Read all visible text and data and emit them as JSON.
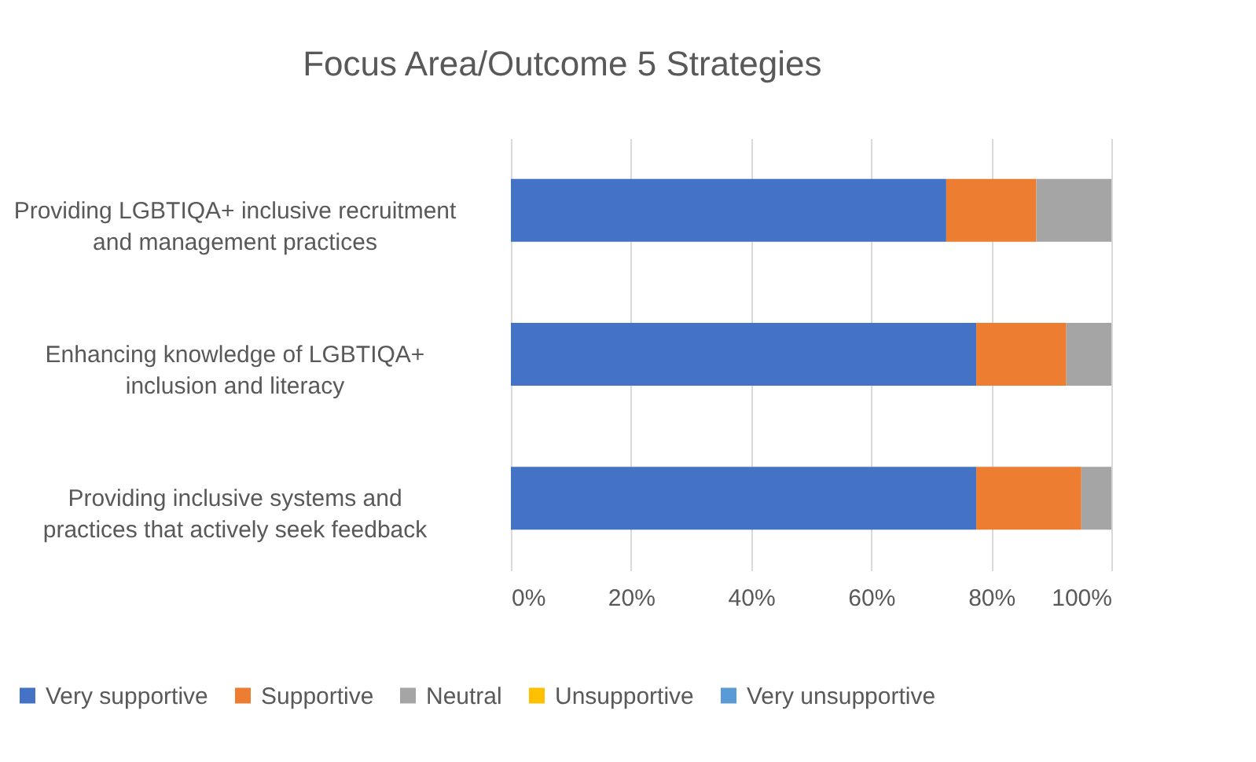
{
  "chart_data": {
    "type": "bar",
    "orientation": "horizontal",
    "stacked": true,
    "title": "Focus Area/Outcome 5 Strategies",
    "categories": [
      "Providing LGBTIQA+ inclusive recruitment and management practices",
      "Enhancing knowledge of LGBTIQA+ inclusion and literacy",
      "Providing inclusive systems and practices that actively seek feedback"
    ],
    "series": [
      {
        "name": "Very supportive",
        "color": "#4472c4",
        "values": [
          72.5,
          77.5,
          77.5
        ]
      },
      {
        "name": "Supportive",
        "color": "#ed7d31",
        "values": [
          15,
          15,
          17.5
        ]
      },
      {
        "name": "Neutral",
        "color": "#a5a5a5",
        "values": [
          12.5,
          7.5,
          5
        ]
      },
      {
        "name": "Unsupportive",
        "color": "#ffc000",
        "values": [
          0,
          0,
          0
        ]
      },
      {
        "name": "Very unsupportive",
        "color": "#5b9bd5",
        "values": [
          0,
          0,
          0
        ]
      }
    ],
    "xlim": [
      0,
      100
    ],
    "xticks": [
      {
        "value": 0,
        "label": "0%"
      },
      {
        "value": 20,
        "label": "20%"
      },
      {
        "value": 40,
        "label": "40%"
      },
      {
        "value": 60,
        "label": "60%"
      },
      {
        "value": 80,
        "label": "80%"
      },
      {
        "value": 100,
        "label": "100%"
      }
    ],
    "grid": "x",
    "legend": "bottom"
  }
}
